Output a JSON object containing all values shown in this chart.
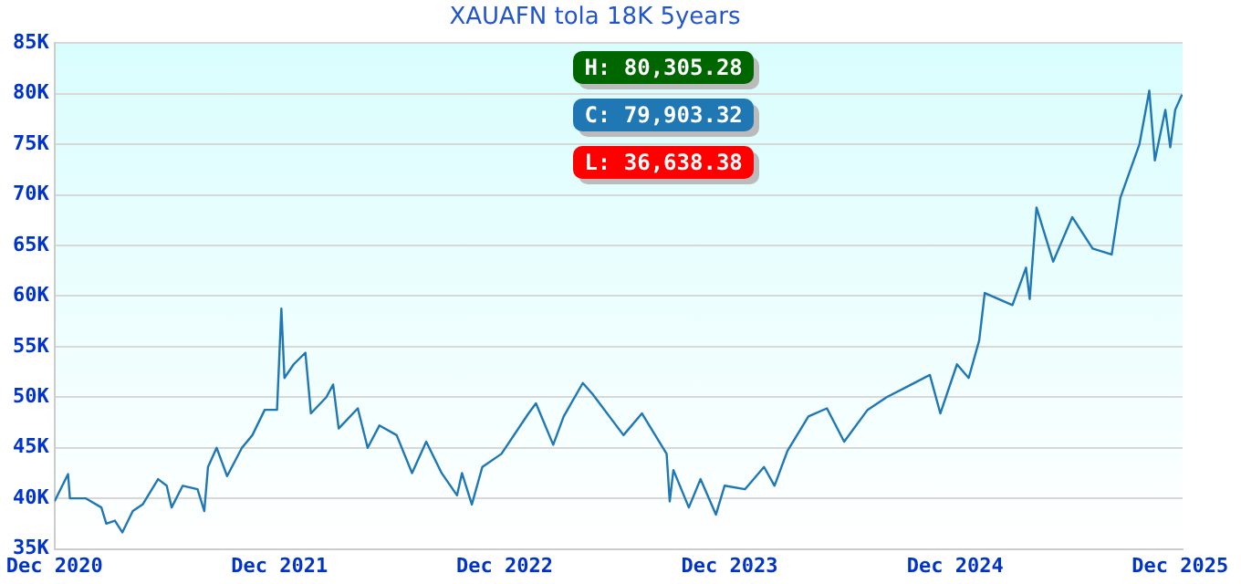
{
  "chart_data": {
    "type": "line",
    "title": "XAUAFN tola 18K 5years",
    "annotations": [
      "H: 80,305.28",
      "C: 79,903.32",
      "L: 36,638.38"
    ],
    "series": [
      {
        "color": "#1f77b4",
        "x": [
          "2020-12-01",
          "2020-12-23",
          "2020-12-26",
          "2021-01-21",
          "2021-02-15",
          "2021-02-23",
          "2021-03-09",
          "2021-03-21",
          "2021-04-07",
          "2021-04-23",
          "2021-05-18",
          "2021-06-01",
          "2021-06-09",
          "2021-06-27",
          "2021-07-21",
          "2021-08-01",
          "2021-08-07",
          "2021-08-21",
          "2021-09-07",
          "2021-10-01",
          "2021-10-18",
          "2021-11-07",
          "2021-11-27",
          "2021-12-04",
          "2021-12-09",
          "2021-12-24",
          "2022-01-12",
          "2022-01-21",
          "2022-02-15",
          "2022-02-26",
          "2022-03-07",
          "2022-04-07",
          "2022-04-23",
          "2022-05-12",
          "2022-06-09",
          "2022-07-04",
          "2022-07-27",
          "2022-08-21",
          "2022-09-15",
          "2022-09-23",
          "2022-10-09",
          "2022-10-26",
          "2022-11-26",
          "2023-01-09",
          "2023-01-21",
          "2023-02-18",
          "2023-03-07",
          "2023-04-07",
          "2023-04-23",
          "2023-06-12",
          "2023-07-12",
          "2023-08-21",
          "2023-08-26",
          "2023-09-01",
          "2023-09-26",
          "2023-10-15",
          "2023-11-09",
          "2023-11-23",
          "2023-12-26",
          "2024-01-26",
          "2024-02-12",
          "2024-03-04",
          "2024-04-07",
          "2024-05-07",
          "2024-06-04",
          "2024-07-12",
          "2024-08-12",
          "2024-09-21",
          "2024-10-21",
          "2024-11-07",
          "2024-12-04",
          "2024-12-23",
          "2025-01-09",
          "2025-01-18",
          "2025-03-04",
          "2025-03-26",
          "2025-04-01",
          "2025-04-12",
          "2025-05-09",
          "2025-06-09",
          "2025-07-12",
          "2025-08-12",
          "2025-08-26",
          "2025-09-26",
          "2025-10-12",
          "2025-10-21",
          "2025-11-07",
          "2025-11-15",
          "2025-11-23",
          "2025-12-04"
        ],
        "values": [
          39700,
          42400,
          40000,
          40000,
          39100,
          37500,
          37800,
          36640,
          38750,
          39400,
          41900,
          41250,
          39100,
          41250,
          40900,
          38750,
          43100,
          45000,
          42200,
          45000,
          46250,
          48750,
          48750,
          58750,
          51900,
          53250,
          54400,
          48400,
          50000,
          51250,
          46900,
          48900,
          45000,
          47200,
          46250,
          42500,
          45600,
          42500,
          40300,
          42500,
          39400,
          43100,
          44400,
          48400,
          49400,
          45300,
          48100,
          51400,
          50300,
          46250,
          48400,
          44400,
          39700,
          42800,
          39100,
          41900,
          38400,
          41250,
          40900,
          43100,
          41250,
          44700,
          48100,
          48900,
          45600,
          48750,
          50000,
          51250,
          52200,
          48400,
          53250,
          51900,
          55600,
          60300,
          59100,
          62800,
          59700,
          68750,
          63400,
          67800,
          64700,
          64100,
          69700,
          75000,
          80300,
          73400,
          78400,
          74700,
          78400,
          79900
        ]
      }
    ],
    "xlim": [
      "2020-12-01",
      "2025-12-05"
    ],
    "xticks": [
      {
        "value": "2020-12-01",
        "label": "Dec 2020"
      },
      {
        "value": "2021-12-01",
        "label": "Dec 2021"
      },
      {
        "value": "2022-12-01",
        "label": "Dec 2022"
      },
      {
        "value": "2023-12-01",
        "label": "Dec 2023"
      },
      {
        "value": "2024-12-01",
        "label": "Dec 2024"
      },
      {
        "value": "2025-12-01",
        "label": "Dec 2025"
      }
    ],
    "ylim": [
      35000,
      85000
    ],
    "yticks": [
      {
        "value": 35000,
        "label": "35K"
      },
      {
        "value": 40000,
        "label": "40K"
      },
      {
        "value": 45000,
        "label": "45K"
      },
      {
        "value": 50000,
        "label": "50K"
      },
      {
        "value": 55000,
        "label": "55K"
      },
      {
        "value": 60000,
        "label": "60K"
      },
      {
        "value": 65000,
        "label": "65K"
      },
      {
        "value": 70000,
        "label": "70K"
      },
      {
        "value": 75000,
        "label": "75K"
      },
      {
        "value": 80000,
        "label": "80K"
      },
      {
        "value": 85000,
        "label": "85K"
      }
    ],
    "grid": "y",
    "legend": false,
    "marker": "none",
    "line_style": "solid"
  }
}
